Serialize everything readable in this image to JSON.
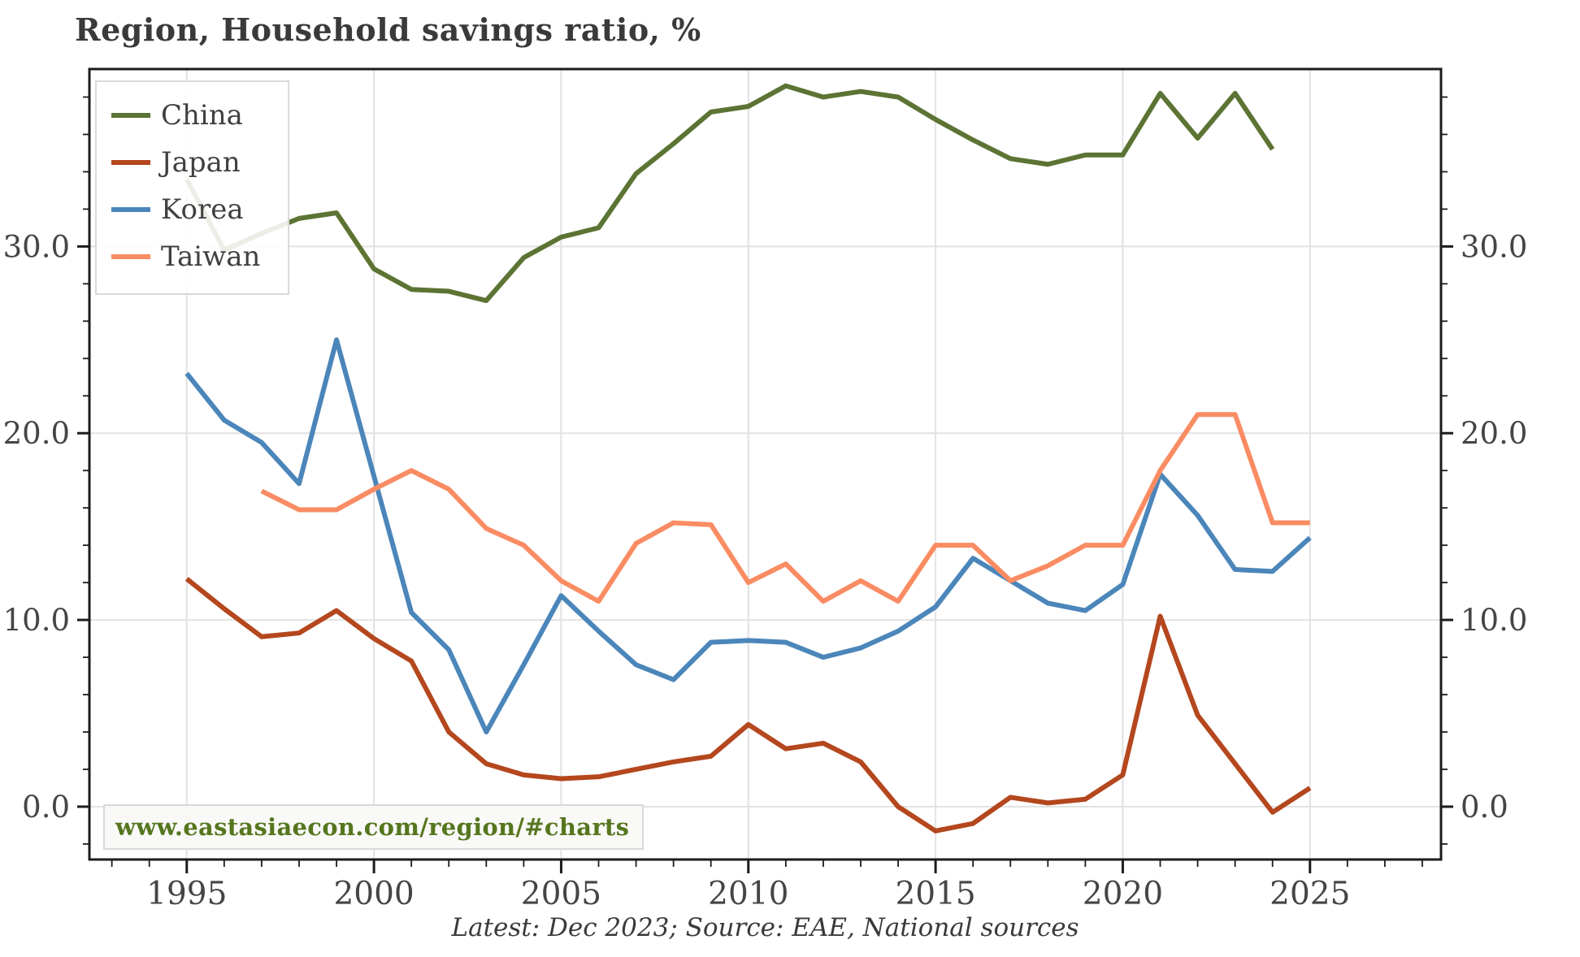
{
  "chart_data": {
    "type": "line",
    "title": "Region, Household savings ratio, %",
    "caption": "Latest: Dec 2023; Source: EAE, National sources",
    "watermark": "www.eastasiaecon.com/region/#charts",
    "xlabel": "",
    "ylabel": "",
    "xlim": [
      1992.4,
      2028.5
    ],
    "ylim": [
      -2.83,
      39.5
    ],
    "x_ticks": [
      1995,
      2000,
      2005,
      2010,
      2015,
      2020,
      2025
    ],
    "x_ticklabels": [
      "1995",
      "2000",
      "2005",
      "2010",
      "2015",
      "2020",
      "2025"
    ],
    "y_ticks": [
      0,
      10,
      20,
      30
    ],
    "y_ticklabels": [
      "0.0",
      "10.0",
      "20.0",
      "30.0"
    ],
    "minor_x_step": 1,
    "minor_y_step": 2,
    "grid": true,
    "y_axis_both_sides": true,
    "legend_position": "upper left",
    "colors": {
      "grid": "#e2e2e2",
      "spine": "#1c1c1c",
      "tick": "#1c1c1c",
      "tick_label": "#454545",
      "title": "#3a3a3a",
      "watermark_text": "#55761e",
      "legend_border": "#d9d9d9"
    },
    "series": [
      {
        "name": "China",
        "color": "#5c7433",
        "start_year": 1995,
        "values": [
          33.6,
          29.8,
          30.7,
          31.5,
          31.8,
          28.8,
          27.7,
          27.6,
          27.1,
          29.4,
          30.5,
          31.0,
          33.9,
          35.5,
          37.2,
          37.5,
          38.6,
          38.0,
          38.3,
          38.0,
          36.8,
          35.7,
          34.7,
          34.4,
          34.9,
          34.9,
          38.2,
          35.8,
          38.2,
          35.2
        ]
      },
      {
        "name": "Japan",
        "color": "#b4471e",
        "start_year": 1995,
        "values": [
          12.2,
          10.6,
          9.1,
          9.3,
          10.5,
          9.0,
          7.8,
          4.0,
          2.3,
          1.7,
          1.5,
          1.6,
          2.0,
          2.4,
          2.7,
          4.4,
          3.1,
          3.4,
          2.4,
          0.0,
          -1.3,
          -0.9,
          0.5,
          0.2,
          0.4,
          1.7,
          10.2,
          4.9,
          2.3,
          -0.3,
          1.0
        ]
      },
      {
        "name": "Korea",
        "color": "#4b86ba",
        "start_year": 1995,
        "values": [
          23.2,
          20.7,
          19.5,
          17.3,
          25.0,
          17.7,
          10.4,
          8.4,
          4.0,
          7.6,
          11.3,
          9.4,
          7.6,
          6.8,
          8.8,
          8.9,
          8.8,
          8.0,
          8.5,
          9.4,
          10.7,
          13.3,
          12.1,
          10.9,
          10.5,
          11.9,
          17.8,
          15.6,
          12.7,
          12.6,
          14.4
        ]
      },
      {
        "name": "Taiwan",
        "color": "#fa8c63",
        "start_year": 1997,
        "values": [
          16.9,
          15.9,
          15.9,
          17.0,
          18.0,
          17.0,
          14.9,
          14.0,
          12.1,
          11.0,
          14.1,
          15.2,
          15.1,
          12.0,
          13.0,
          11.0,
          12.1,
          11.0,
          14.0,
          14.0,
          12.1,
          12.9,
          14.0,
          14.0,
          18.0,
          21.0,
          21.0,
          15.2,
          15.2
        ]
      }
    ]
  }
}
